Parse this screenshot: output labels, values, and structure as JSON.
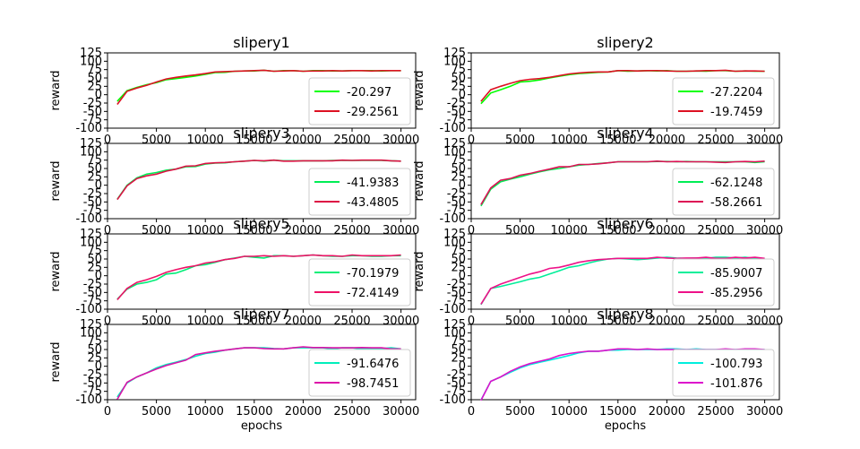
{
  "chart_data": [
    {
      "type": "line",
      "title": "slipery1",
      "xlabel": "",
      "ylabel": "reward",
      "xlim": [
        0,
        31500
      ],
      "ylim": [
        -100,
        125
      ],
      "xticks": [
        0,
        5000,
        10000,
        15000,
        20000,
        25000,
        30000
      ],
      "yticks": [
        -100,
        -75,
        -50,
        -25,
        0,
        25,
        50,
        75,
        100,
        125
      ],
      "x": [
        1000,
        2000,
        3000,
        4000,
        5000,
        6000,
        7000,
        8000,
        9000,
        10000,
        11000,
        12000,
        13000,
        14000,
        15000,
        16000,
        17000,
        18000,
        19000,
        20000,
        21000,
        22000,
        23000,
        24000,
        25000,
        26000,
        27000,
        28000,
        29000,
        30000
      ],
      "legend_position": "lower-right",
      "series": [
        {
          "name": "-20.297",
          "color": "#00ff00",
          "values": [
            -20,
            12,
            22,
            30,
            36,
            45,
            48,
            52,
            56,
            61,
            66,
            67,
            70,
            71,
            71,
            73,
            70,
            72,
            72,
            70,
            72,
            72,
            71,
            71,
            72,
            72,
            72,
            71,
            72,
            72
          ]
        },
        {
          "name": "-29.2561",
          "color": "#dd1122",
          "values": [
            -29,
            10,
            20,
            28,
            38,
            47,
            52,
            56,
            59,
            63,
            68,
            69,
            70,
            71,
            72,
            73,
            70,
            71,
            72,
            70,
            71,
            71,
            72,
            71,
            72,
            72,
            71,
            72,
            72,
            72
          ]
        }
      ]
    },
    {
      "type": "line",
      "title": "slipery2",
      "xlabel": "",
      "ylabel": "reward",
      "xlim": [
        0,
        31500
      ],
      "ylim": [
        -100,
        125
      ],
      "xticks": [
        0,
        5000,
        10000,
        15000,
        20000,
        25000,
        30000
      ],
      "yticks": [
        -100,
        -75,
        -50,
        -25,
        0,
        25,
        50,
        75,
        100,
        125
      ],
      "x": [
        1000,
        2000,
        3000,
        4000,
        5000,
        6000,
        7000,
        8000,
        9000,
        10000,
        11000,
        12000,
        13000,
        14000,
        15000,
        16000,
        17000,
        18000,
        19000,
        20000,
        21000,
        22000,
        23000,
        24000,
        25000,
        26000,
        27000,
        28000,
        29000,
        30000
      ],
      "legend_position": "lower-right",
      "series": [
        {
          "name": "-27.2204",
          "color": "#00ff00",
          "values": [
            -27,
            5,
            15,
            25,
            38,
            40,
            44,
            50,
            55,
            60,
            63,
            65,
            67,
            68,
            72,
            70,
            71,
            72,
            71,
            72,
            70,
            70,
            71,
            70,
            72,
            72,
            70,
            71,
            70,
            70
          ]
        },
        {
          "name": "-19.7459",
          "color": "#dd1122",
          "values": [
            -20,
            15,
            25,
            34,
            42,
            46,
            48,
            52,
            57,
            62,
            65,
            67,
            68,
            68,
            72,
            72,
            71,
            72,
            72,
            71,
            70,
            70,
            71,
            72,
            72,
            73,
            70,
            71,
            71,
            70
          ]
        }
      ]
    },
    {
      "type": "line",
      "title": "slipery3",
      "xlabel": "",
      "ylabel": "reward",
      "xlim": [
        0,
        31500
      ],
      "ylim": [
        -100,
        125
      ],
      "xticks": [
        0,
        5000,
        10000,
        15000,
        20000,
        25000,
        30000
      ],
      "yticks": [
        -100,
        -75,
        -50,
        -25,
        0,
        25,
        50,
        75,
        100,
        125
      ],
      "x": [
        1000,
        2000,
        3000,
        4000,
        5000,
        6000,
        7000,
        8000,
        9000,
        10000,
        11000,
        12000,
        13000,
        14000,
        15000,
        16000,
        17000,
        18000,
        19000,
        20000,
        21000,
        22000,
        23000,
        24000,
        25000,
        26000,
        27000,
        28000,
        29000,
        30000
      ],
      "legend_position": "lower-right",
      "series": [
        {
          "name": "-41.9383",
          "color": "#00ee55",
          "values": [
            -42,
            0,
            22,
            33,
            38,
            45,
            48,
            55,
            56,
            63,
            66,
            67,
            70,
            72,
            74,
            72,
            75,
            73,
            73,
            73,
            73,
            73,
            74,
            74,
            74,
            74,
            74,
            74,
            73,
            72
          ]
        },
        {
          "name": "-43.4805",
          "color": "#dd1144",
          "values": [
            -43,
            -2,
            20,
            28,
            33,
            42,
            48,
            57,
            58,
            65,
            67,
            68,
            70,
            72,
            74,
            73,
            75,
            72,
            72,
            73,
            73,
            73,
            73,
            75,
            74,
            75,
            75,
            75,
            73,
            72
          ]
        }
      ]
    },
    {
      "type": "line",
      "title": "slipery4",
      "xlabel": "",
      "ylabel": "reward",
      "xlim": [
        0,
        31500
      ],
      "ylim": [
        -100,
        125
      ],
      "xticks": [
        0,
        5000,
        10000,
        15000,
        20000,
        25000,
        30000
      ],
      "yticks": [
        -100,
        -75,
        -50,
        -25,
        0,
        25,
        50,
        75,
        100,
        125
      ],
      "x": [
        1000,
        2000,
        3000,
        4000,
        5000,
        6000,
        7000,
        8000,
        9000,
        10000,
        11000,
        12000,
        13000,
        14000,
        15000,
        16000,
        17000,
        18000,
        19000,
        20000,
        21000,
        22000,
        23000,
        24000,
        25000,
        26000,
        27000,
        28000,
        29000,
        30000
      ],
      "legend_position": "lower-right",
      "series": [
        {
          "name": "-62.1248",
          "color": "#00ee55",
          "values": [
            -62,
            -12,
            10,
            18,
            25,
            33,
            40,
            46,
            50,
            55,
            60,
            62,
            65,
            67,
            70,
            70,
            70,
            70,
            71,
            71,
            70,
            71,
            70,
            70,
            70,
            70,
            70,
            70,
            68,
            70
          ]
        },
        {
          "name": "-58.2661",
          "color": "#dd1155",
          "values": [
            -58,
            -8,
            15,
            20,
            30,
            35,
            42,
            48,
            55,
            55,
            62,
            62,
            64,
            67,
            70,
            70,
            70,
            70,
            72,
            70,
            71,
            70,
            70,
            70,
            69,
            68,
            70,
            71,
            70,
            72
          ]
        }
      ]
    },
    {
      "type": "line",
      "title": "slipery5",
      "xlabel": "",
      "ylabel": "reward",
      "xlim": [
        0,
        31500
      ],
      "ylim": [
        -100,
        125
      ],
      "xticks": [
        0,
        5000,
        10000,
        15000,
        20000,
        25000,
        30000
      ],
      "yticks": [
        -100,
        -75,
        -50,
        -25,
        0,
        25,
        50,
        75,
        100,
        125
      ],
      "x": [
        1000,
        2000,
        3000,
        4000,
        5000,
        6000,
        7000,
        8000,
        9000,
        10000,
        11000,
        12000,
        13000,
        14000,
        15000,
        16000,
        17000,
        18000,
        19000,
        20000,
        21000,
        22000,
        23000,
        24000,
        25000,
        26000,
        27000,
        28000,
        29000,
        30000
      ],
      "legend_position": "lower-right",
      "series": [
        {
          "name": "-70.1979",
          "color": "#00ee77",
          "values": [
            -70,
            -40,
            -25,
            -20,
            -12,
            5,
            8,
            18,
            30,
            33,
            40,
            48,
            53,
            58,
            55,
            53,
            60,
            60,
            58,
            60,
            62,
            60,
            58,
            58,
            60,
            60,
            58,
            58,
            60,
            60
          ]
        },
        {
          "name": "-72.4149",
          "color": "#ee1166",
          "values": [
            -72,
            -38,
            -20,
            -12,
            -2,
            10,
            18,
            25,
            30,
            38,
            42,
            48,
            52,
            58,
            58,
            60,
            58,
            60,
            58,
            60,
            62,
            60,
            60,
            58,
            62,
            60,
            60,
            60,
            60,
            62
          ]
        }
      ]
    },
    {
      "type": "line",
      "title": "slipery6",
      "xlabel": "",
      "ylabel": "reward",
      "xlim": [
        0,
        31500
      ],
      "ylim": [
        -100,
        125
      ],
      "xticks": [
        0,
        5000,
        10000,
        15000,
        20000,
        25000,
        30000
      ],
      "yticks": [
        -100,
        -75,
        -50,
        -25,
        0,
        25,
        50,
        75,
        100,
        125
      ],
      "x": [
        1000,
        2000,
        3000,
        4000,
        5000,
        6000,
        7000,
        8000,
        9000,
        10000,
        11000,
        12000,
        13000,
        14000,
        15000,
        16000,
        17000,
        18000,
        19000,
        20000,
        21000,
        22000,
        23000,
        24000,
        25000,
        26000,
        27000,
        28000,
        29000,
        30000
      ],
      "legend_position": "lower-right",
      "series": [
        {
          "name": "-85.9007",
          "color": "#00ee99",
          "values": [
            -86,
            -38,
            -32,
            -25,
            -18,
            -10,
            -5,
            5,
            15,
            25,
            30,
            38,
            45,
            50,
            52,
            50,
            48,
            50,
            53,
            55,
            53,
            52,
            53,
            52,
            55,
            55,
            53,
            55,
            52,
            52
          ]
        },
        {
          "name": "-85.2956",
          "color": "#ee1188",
          "values": [
            -85,
            -38,
            -25,
            -15,
            -5,
            5,
            12,
            22,
            25,
            32,
            40,
            45,
            48,
            50,
            52,
            52,
            52,
            52,
            55,
            53,
            52,
            53,
            53,
            55,
            52,
            52,
            55,
            53,
            55,
            52
          ]
        }
      ]
    },
    {
      "type": "line",
      "title": "slipery7",
      "xlabel": "epochs",
      "ylabel": "reward",
      "xlim": [
        0,
        31500
      ],
      "ylim": [
        -100,
        125
      ],
      "xticks": [
        0,
        5000,
        10000,
        15000,
        20000,
        25000,
        30000
      ],
      "yticks": [
        -100,
        -75,
        -50,
        -25,
        0,
        25,
        50,
        75,
        100,
        125
      ],
      "x": [
        1000,
        2000,
        3000,
        4000,
        5000,
        6000,
        7000,
        8000,
        9000,
        10000,
        11000,
        12000,
        13000,
        14000,
        15000,
        16000,
        17000,
        18000,
        19000,
        20000,
        21000,
        22000,
        23000,
        24000,
        25000,
        26000,
        27000,
        28000,
        29000,
        30000
      ],
      "legend_position": "lower-right",
      "series": [
        {
          "name": "-91.6476",
          "color": "#00eebb",
          "values": [
            -92,
            -50,
            -32,
            -20,
            -5,
            5,
            12,
            20,
            30,
            38,
            42,
            48,
            52,
            55,
            55,
            55,
            53,
            52,
            55,
            55,
            55,
            55,
            52,
            55,
            55,
            52,
            52,
            53,
            55,
            52
          ]
        },
        {
          "name": "-98.7451",
          "color": "#dd11aa",
          "values": [
            -99,
            -48,
            -32,
            -20,
            -8,
            2,
            10,
            18,
            35,
            40,
            45,
            48,
            52,
            55,
            55,
            53,
            52,
            52,
            55,
            58,
            56,
            56,
            55,
            55,
            55,
            56,
            55,
            55,
            52,
            52
          ]
        }
      ]
    },
    {
      "type": "line",
      "title": "slipery8",
      "xlabel": "epochs",
      "ylabel": "",
      "xlim": [
        0,
        31500
      ],
      "ylim": [
        -100,
        125
      ],
      "xticks": [
        0,
        5000,
        10000,
        15000,
        20000,
        25000,
        30000
      ],
      "yticks": [
        -100,
        -75,
        -50,
        -25,
        0,
        25,
        50,
        75,
        100,
        125
      ],
      "x": [
        1000,
        2000,
        3000,
        4000,
        5000,
        6000,
        7000,
        8000,
        9000,
        10000,
        11000,
        12000,
        13000,
        14000,
        15000,
        16000,
        17000,
        18000,
        19000,
        20000,
        21000,
        22000,
        23000,
        24000,
        25000,
        26000,
        27000,
        28000,
        29000,
        30000
      ],
      "legend_position": "lower-right",
      "series": [
        {
          "name": "-100.793",
          "color": "#00eedd",
          "values": [
            -101,
            -45,
            -32,
            -18,
            -5,
            5,
            12,
            18,
            25,
            32,
            40,
            45,
            45,
            48,
            48,
            50,
            50,
            50,
            50,
            52,
            52,
            50,
            52,
            50,
            50,
            50,
            50,
            50,
            50,
            50
          ]
        },
        {
          "name": "-101.876",
          "color": "#dd11cc",
          "values": [
            -102,
            -45,
            -32,
            -15,
            -2,
            8,
            15,
            22,
            32,
            38,
            42,
            45,
            45,
            48,
            52,
            52,
            50,
            52,
            50,
            50,
            50,
            50,
            50,
            50,
            50,
            52,
            50,
            52,
            52,
            50
          ]
        }
      ]
    }
  ]
}
